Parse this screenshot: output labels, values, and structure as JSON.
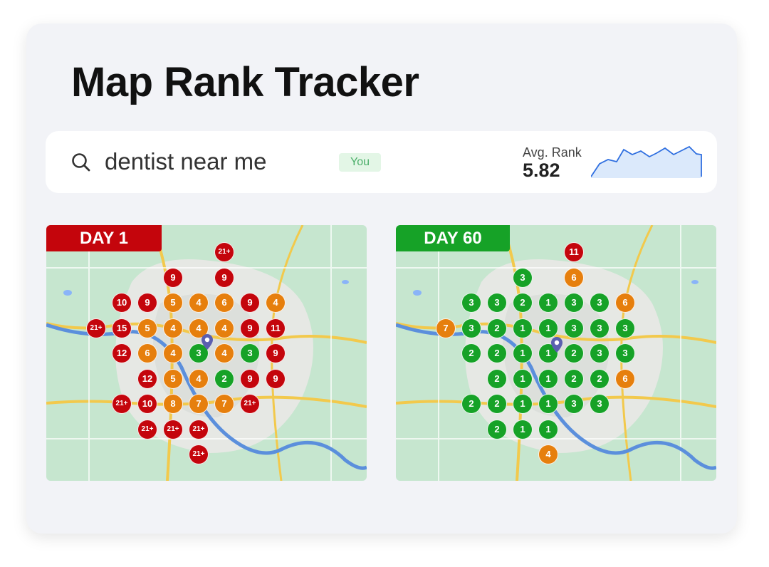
{
  "title": "Map Rank Tracker",
  "search": {
    "icon": "search-icon",
    "query": "dentist near me",
    "badge": "You",
    "avg_rank_label": "Avg. Rank",
    "avg_rank_value": "5.82"
  },
  "colors": {
    "red": "#c4050c",
    "orange": "#e67f0d",
    "green": "#16a227",
    "you_badge_bg": "#e3f6e6",
    "sparkline_fill": "#dbe9fb",
    "sparkline_stroke": "#2f6fe0"
  },
  "maps": [
    {
      "day_label": "DAY 1",
      "pins": [
        {
          "row": 0,
          "col": 5,
          "rank": "21+"
        },
        {
          "row": 1,
          "col": 3,
          "rank": "9"
        },
        {
          "row": 1,
          "col": 5,
          "rank": "9"
        },
        {
          "row": 2,
          "col": 1,
          "rank": "10"
        },
        {
          "row": 2,
          "col": 2,
          "rank": "9"
        },
        {
          "row": 2,
          "col": 3,
          "rank": "5"
        },
        {
          "row": 2,
          "col": 4,
          "rank": "4"
        },
        {
          "row": 2,
          "col": 5,
          "rank": "6"
        },
        {
          "row": 2,
          "col": 6,
          "rank": "9"
        },
        {
          "row": 2,
          "col": 7,
          "rank": "4"
        },
        {
          "row": 3,
          "col": 0,
          "rank": "21+"
        },
        {
          "row": 3,
          "col": 1,
          "rank": "15"
        },
        {
          "row": 3,
          "col": 2,
          "rank": "5"
        },
        {
          "row": 3,
          "col": 3,
          "rank": "4"
        },
        {
          "row": 3,
          "col": 4,
          "rank": "4"
        },
        {
          "row": 3,
          "col": 5,
          "rank": "4"
        },
        {
          "row": 3,
          "col": 6,
          "rank": "9"
        },
        {
          "row": 3,
          "col": 7,
          "rank": "11"
        },
        {
          "row": 4,
          "col": 1,
          "rank": "12"
        },
        {
          "row": 4,
          "col": 2,
          "rank": "6"
        },
        {
          "row": 4,
          "col": 3,
          "rank": "4"
        },
        {
          "row": 4,
          "col": 4,
          "rank": "3"
        },
        {
          "row": 4,
          "col": 5,
          "rank": "4"
        },
        {
          "row": 4,
          "col": 6,
          "rank": "3"
        },
        {
          "row": 4,
          "col": 7,
          "rank": "9"
        },
        {
          "row": 5,
          "col": 2,
          "rank": "12"
        },
        {
          "row": 5,
          "col": 3,
          "rank": "5"
        },
        {
          "row": 5,
          "col": 4,
          "rank": "4"
        },
        {
          "row": 5,
          "col": 5,
          "rank": "2"
        },
        {
          "row": 5,
          "col": 6,
          "rank": "9"
        },
        {
          "row": 5,
          "col": 7,
          "rank": "9"
        },
        {
          "row": 6,
          "col": 1,
          "rank": "21+"
        },
        {
          "row": 6,
          "col": 2,
          "rank": "10"
        },
        {
          "row": 6,
          "col": 3,
          "rank": "8"
        },
        {
          "row": 6,
          "col": 4,
          "rank": "7"
        },
        {
          "row": 6,
          "col": 5,
          "rank": "7"
        },
        {
          "row": 6,
          "col": 6,
          "rank": "21+"
        },
        {
          "row": 7,
          "col": 2,
          "rank": "21+"
        },
        {
          "row": 7,
          "col": 3,
          "rank": "21+"
        },
        {
          "row": 7,
          "col": 4,
          "rank": "21+"
        },
        {
          "row": 8,
          "col": 4,
          "rank": "21+"
        }
      ]
    },
    {
      "day_label": "DAY 60",
      "pins": [
        {
          "row": 0,
          "col": 5,
          "rank": "11"
        },
        {
          "row": 1,
          "col": 3,
          "rank": "3"
        },
        {
          "row": 1,
          "col": 5,
          "rank": "6"
        },
        {
          "row": 2,
          "col": 1,
          "rank": "3"
        },
        {
          "row": 2,
          "col": 2,
          "rank": "3"
        },
        {
          "row": 2,
          "col": 3,
          "rank": "2"
        },
        {
          "row": 2,
          "col": 4,
          "rank": "1"
        },
        {
          "row": 2,
          "col": 5,
          "rank": "3"
        },
        {
          "row": 2,
          "col": 6,
          "rank": "3"
        },
        {
          "row": 2,
          "col": 7,
          "rank": "6"
        },
        {
          "row": 3,
          "col": 0,
          "rank": "7"
        },
        {
          "row": 3,
          "col": 1,
          "rank": "3"
        },
        {
          "row": 3,
          "col": 2,
          "rank": "2"
        },
        {
          "row": 3,
          "col": 3,
          "rank": "1"
        },
        {
          "row": 3,
          "col": 4,
          "rank": "1"
        },
        {
          "row": 3,
          "col": 5,
          "rank": "3"
        },
        {
          "row": 3,
          "col": 6,
          "rank": "3"
        },
        {
          "row": 3,
          "col": 7,
          "rank": "3"
        },
        {
          "row": 4,
          "col": 1,
          "rank": "2"
        },
        {
          "row": 4,
          "col": 2,
          "rank": "2"
        },
        {
          "row": 4,
          "col": 3,
          "rank": "1"
        },
        {
          "row": 4,
          "col": 4,
          "rank": "1"
        },
        {
          "row": 4,
          "col": 5,
          "rank": "2"
        },
        {
          "row": 4,
          "col": 6,
          "rank": "3"
        },
        {
          "row": 4,
          "col": 7,
          "rank": "3"
        },
        {
          "row": 5,
          "col": 2,
          "rank": "2"
        },
        {
          "row": 5,
          "col": 3,
          "rank": "1"
        },
        {
          "row": 5,
          "col": 4,
          "rank": "1"
        },
        {
          "row": 5,
          "col": 5,
          "rank": "2"
        },
        {
          "row": 5,
          "col": 6,
          "rank": "2"
        },
        {
          "row": 5,
          "col": 7,
          "rank": "6"
        },
        {
          "row": 6,
          "col": 1,
          "rank": "2"
        },
        {
          "row": 6,
          "col": 2,
          "rank": "2"
        },
        {
          "row": 6,
          "col": 3,
          "rank": "1"
        },
        {
          "row": 6,
          "col": 4,
          "rank": "1"
        },
        {
          "row": 6,
          "col": 5,
          "rank": "3"
        },
        {
          "row": 6,
          "col": 6,
          "rank": "3"
        },
        {
          "row": 7,
          "col": 2,
          "rank": "2"
        },
        {
          "row": 7,
          "col": 3,
          "rank": "1"
        },
        {
          "row": 7,
          "col": 4,
          "rank": "1"
        },
        {
          "row": 8,
          "col": 4,
          "rank": "4"
        }
      ]
    }
  ]
}
